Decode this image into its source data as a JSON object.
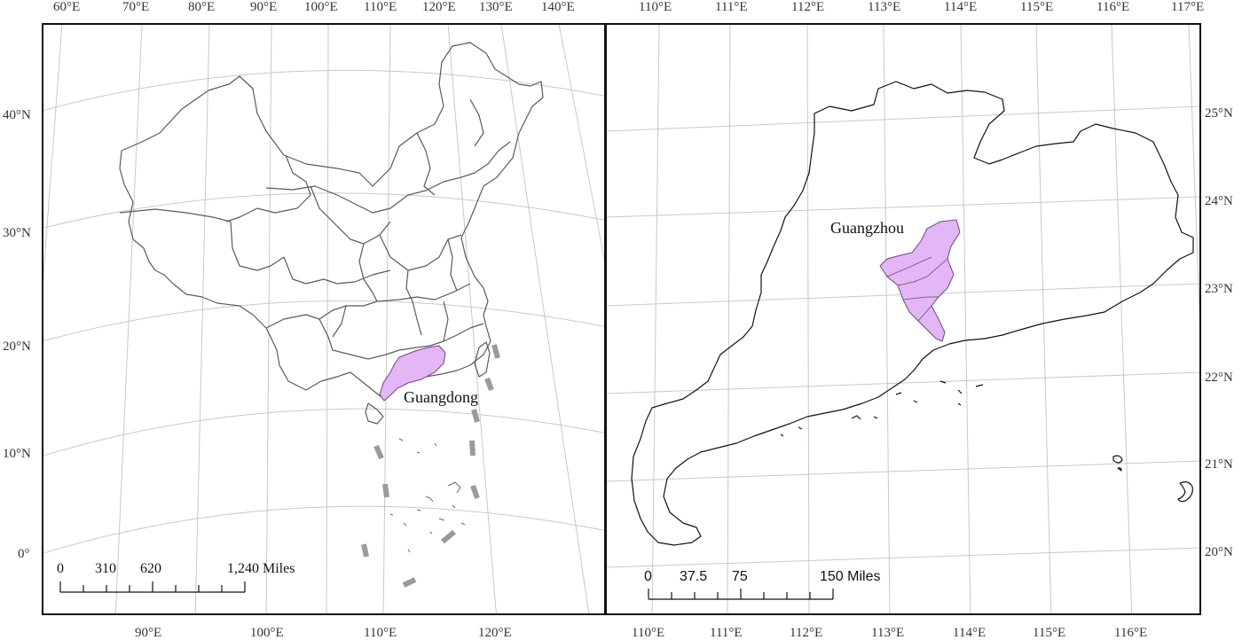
{
  "left_map": {
    "top_lon_labels": [
      "60°E",
      "70°E",
      "80°E",
      "90°E",
      "100°E",
      "110°E",
      "120°E",
      "130°E",
      "140°E"
    ],
    "bottom_lon_labels": [
      "90°E",
      "100°E",
      "110°E",
      "120°E"
    ],
    "lat_labels": [
      "40°N",
      "30°N",
      "20°N",
      "10°N",
      "0°"
    ],
    "region_label": "Guangdong",
    "scale": {
      "labels": [
        "0",
        "310",
        "620",
        "1,240 Miles"
      ]
    }
  },
  "right_map": {
    "top_lon_labels": [
      "110°E",
      "111°E",
      "112°E",
      "113°E",
      "114°E",
      "115°E",
      "116°E",
      "117°E"
    ],
    "bottom_lon_labels": [
      "110°E",
      "111°E",
      "112°E",
      "113°E",
      "114°E",
      "115°E",
      "116°E"
    ],
    "lat_labels": [
      "25°N",
      "24°N",
      "23°N",
      "22°N",
      "21°N",
      "20°N"
    ],
    "city_label": "Guangzhou",
    "scale": {
      "labels": [
        "0",
        "37.5",
        "75",
        "150 Miles"
      ]
    }
  },
  "colors": {
    "highlight": "#e3b6f5",
    "border": "#555555",
    "frame": "#111111",
    "grid": "#c8c8c8"
  }
}
